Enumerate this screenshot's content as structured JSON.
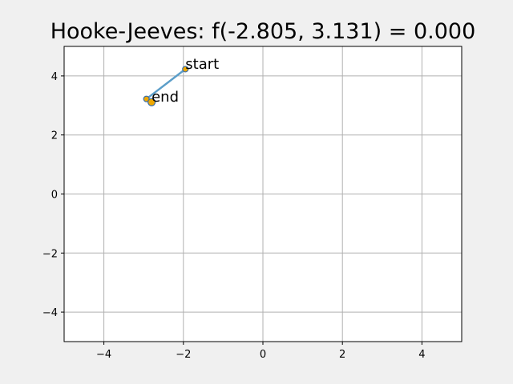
{
  "chart_data": {
    "type": "line",
    "title": "Hooke-Jeeves: f(-2.805, 3.131) = 0.000",
    "xlabel": "",
    "ylabel": "",
    "xlim": [
      -5,
      5
    ],
    "ylim": [
      -5,
      5
    ],
    "xticks": [
      -4,
      -2,
      0,
      2,
      4
    ],
    "yticks": [
      -4,
      -2,
      0,
      2,
      4
    ],
    "grid": true,
    "series": [
      {
        "x": [
          -1.95,
          -2.93,
          -2.8
        ],
        "y": [
          4.23,
          3.22,
          3.11
        ],
        "line_color": "#5b9ec9",
        "marker_color": "#f0a800",
        "marker_edge": "#3b6ea5"
      }
    ],
    "annotations": [
      {
        "text": "start",
        "x": -1.95,
        "y": 4.23
      },
      {
        "text": "end",
        "x": -2.8,
        "y": 3.11
      }
    ]
  }
}
